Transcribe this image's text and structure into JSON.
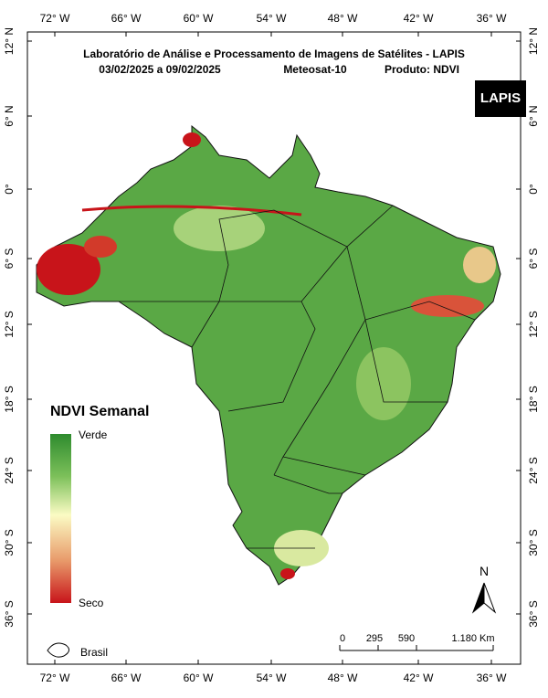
{
  "title": "Laboratório de Análise e Processamento de Imagens de Satélites - LAPIS",
  "subtitle": {
    "dates": "03/02/2025  a  09/02/2025",
    "satellite": "Meteosat-10",
    "product": "Produto: NDVI"
  },
  "logo": "LAPIS",
  "longitude_labels": [
    "72° W",
    "66° W",
    "60° W",
    "54° W",
    "48° W",
    "42° W",
    "36° W"
  ],
  "latitude_labels": [
    "12° N",
    "6° N",
    "0°",
    "6° S",
    "12° S",
    "18° S",
    "24° S",
    "30° S",
    "36° S"
  ],
  "legend": {
    "title": "NDVI Semanal",
    "high": "Verde",
    "low": "Seco"
  },
  "scale_bar": {
    "labels": [
      "0",
      "295",
      "590",
      "1.180 Km"
    ]
  },
  "north": "N",
  "inset_label": "Brasil"
}
